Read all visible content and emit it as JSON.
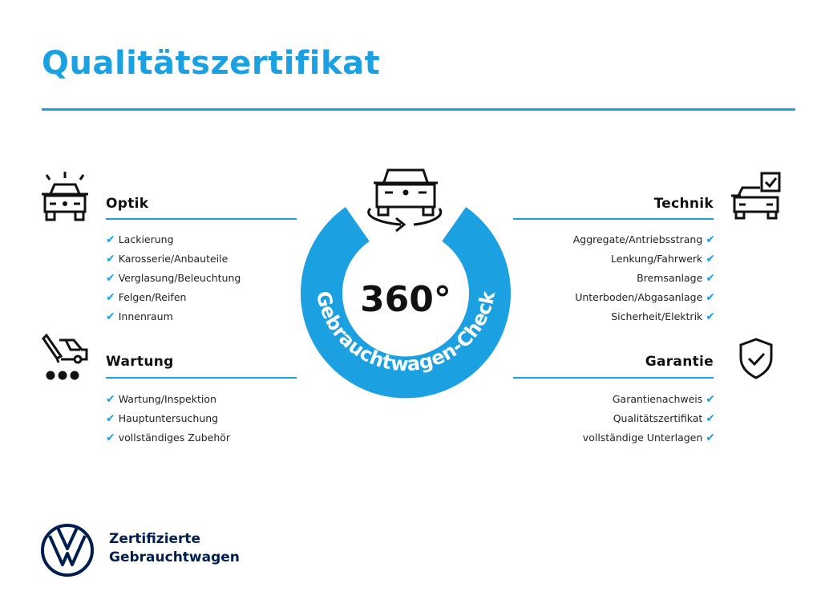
{
  "title": "Qualitätszertifikat",
  "accent": "#1ba1e2",
  "center": {
    "label": "360°",
    "ring_text": "Gebrauchtwagen-Check",
    "icon": "car-rotate-icon"
  },
  "sections": {
    "optik": {
      "title": "Optik",
      "icon": "car-shine-icon",
      "items": [
        "Lackierung",
        "Karosserie/Anbauteile",
        "Verglasung/Beleuchtung",
        "Felgen/Reifen",
        "Innenraum"
      ]
    },
    "wartung": {
      "title": "Wartung",
      "icon": "car-service-icon",
      "items": [
        "Wartung/Inspektion",
        "Hauptuntersuchung",
        "vollständiges Zubehör"
      ]
    },
    "technik": {
      "title": "Technik",
      "icon": "car-checkbox-icon",
      "items": [
        "Aggregate/Antriebsstrang",
        "Lenkung/Fahrwerk",
        "Bremsanlage",
        "Unterboden/Abgasanlage",
        "Sicherheit/Elektrik"
      ]
    },
    "garantie": {
      "title": "Garantie",
      "icon": "shield-check-icon",
      "items": [
        "Garantienachweis",
        "Qualitätszertifikat",
        "vollständige Unterlagen"
      ]
    }
  },
  "check_mark": "✔",
  "footer": {
    "line1": "Zertifizierte",
    "line2": "Gebrauchtwagen",
    "logo": "vw-logo"
  }
}
